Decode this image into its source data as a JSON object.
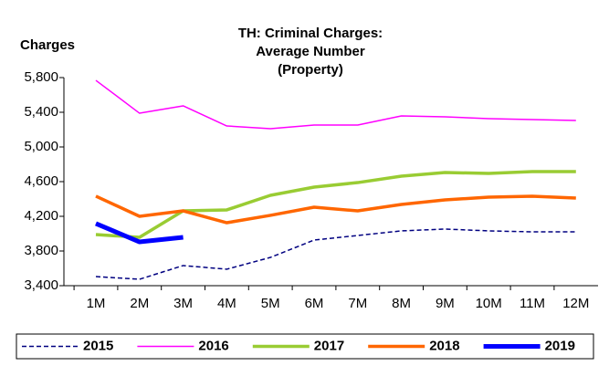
{
  "chart_data": {
    "type": "line",
    "title": "TH: Criminal Charges: Average Number (Property)",
    "title_lines": [
      "TH: Criminal Charges:",
      "Average Number",
      "(Property)"
    ],
    "y_label": "Charges",
    "categories": [
      "1M",
      "2M",
      "3M",
      "4M",
      "5M",
      "6M",
      "7M",
      "8M",
      "9M",
      "10M",
      "11M",
      "12M"
    ],
    "ylim": [
      3400,
      5800
    ],
    "yticks": [
      {
        "value": 3400,
        "label": "3,400"
      },
      {
        "value": 3800,
        "label": "3,800"
      },
      {
        "value": 4200,
        "label": "4,200"
      },
      {
        "value": 4600,
        "label": "4,600"
      },
      {
        "value": 5000,
        "label": "5,000"
      },
      {
        "value": 5400,
        "label": "5,400"
      },
      {
        "value": 5800,
        "label": "5,800"
      }
    ],
    "grid": false,
    "legend": "bottom",
    "series": [
      {
        "name": "2015",
        "color": "#000080",
        "style": "dashed",
        "width": 1.5,
        "values": [
          3505,
          3474,
          3632,
          3590,
          3726,
          3926,
          3979,
          4032,
          4053,
          4032,
          4021,
          4021
        ]
      },
      {
        "name": "2016",
        "color": "#ff00ff",
        "style": "solid",
        "width": 1.5,
        "values": [
          5768,
          5389,
          5474,
          5242,
          5211,
          5253,
          5253,
          5358,
          5347,
          5326,
          5316,
          5305
        ]
      },
      {
        "name": "2017",
        "color": "#99cc33",
        "style": "solid",
        "width": 3.5,
        "values": [
          3989,
          3958,
          4263,
          4274,
          4442,
          4537,
          4589,
          4663,
          4705,
          4695,
          4716,
          4716
        ]
      },
      {
        "name": "2018",
        "color": "#ff6600",
        "style": "solid",
        "width": 3.5,
        "values": [
          4432,
          4200,
          4263,
          4126,
          4211,
          4305,
          4263,
          4337,
          4389,
          4421,
          4432,
          4411
        ]
      },
      {
        "name": "2019",
        "color": "#0000ff",
        "style": "solid",
        "width": 5,
        "values": [
          4116,
          3905,
          3958,
          null,
          null,
          null,
          null,
          null,
          null,
          null,
          null,
          null
        ]
      }
    ]
  }
}
